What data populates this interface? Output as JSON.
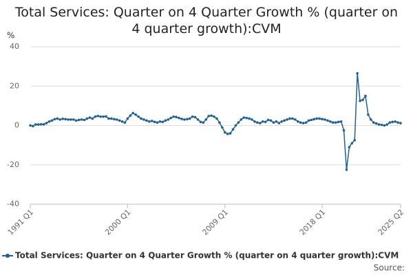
{
  "chart_data": {
    "type": "line",
    "title": "Total Services: Quarter on 4 Quarter Growth % (quarter on 4 quarter growth):CVM",
    "y_label": "%",
    "source": "Source:",
    "categories": [
      "1991 Q1",
      null,
      null,
      null,
      null,
      null,
      null,
      null,
      null,
      null,
      null,
      null,
      null,
      null,
      null,
      null,
      null,
      null,
      null,
      null,
      null,
      null,
      null,
      null,
      null,
      null,
      null,
      null,
      null,
      null,
      null,
      null,
      null,
      null,
      null,
      null,
      "2000 Q1",
      null,
      null,
      null,
      null,
      null,
      null,
      null,
      null,
      null,
      null,
      null,
      null,
      null,
      null,
      null,
      null,
      null,
      null,
      null,
      null,
      null,
      null,
      null,
      null,
      null,
      null,
      null,
      null,
      null,
      null,
      null,
      null,
      null,
      null,
      null,
      "2009 Q1",
      null,
      null,
      null,
      null,
      null,
      null,
      null,
      null,
      null,
      null,
      null,
      null,
      null,
      null,
      null,
      null,
      null,
      null,
      null,
      null,
      null,
      null,
      null,
      null,
      null,
      null,
      null,
      null,
      null,
      null,
      null,
      null,
      null,
      null,
      null,
      "2018 Q1",
      null,
      null,
      null,
      null,
      null,
      null,
      null,
      null,
      null,
      null,
      null,
      null,
      null,
      null,
      null,
      null,
      null,
      null,
      null,
      null,
      null,
      null,
      null,
      null,
      null,
      null,
      null,
      null,
      "2025 Q2"
    ],
    "series": [
      {
        "name": "Total Services: Quarter on 4 Quarter Growth % (quarter on 4 quarter growth):CVM",
        "color": "#206095",
        "values": [
          0,
          -0.3,
          0.5,
          0.5,
          0.6,
          0.6,
          1.2,
          2.0,
          2.5,
          3.2,
          3.5,
          3.0,
          3.4,
          3.2,
          3.0,
          3.0,
          3.0,
          2.5,
          2.8,
          3.0,
          2.8,
          3.5,
          4.0,
          3.5,
          4.5,
          4.8,
          4.5,
          4.5,
          4.6,
          3.5,
          3.5,
          3.2,
          3.0,
          2.5,
          2.0,
          1.5,
          3.5,
          5.0,
          6.3,
          5.5,
          4.5,
          3.5,
          3.0,
          2.5,
          2.0,
          2.3,
          1.8,
          1.5,
          2.0,
          1.8,
          2.5,
          3.0,
          3.8,
          4.5,
          4.3,
          3.8,
          3.3,
          3.0,
          3.2,
          3.5,
          4.5,
          4.2,
          3.0,
          1.8,
          1.5,
          3.0,
          4.8,
          5.0,
          4.5,
          3.5,
          1.5,
          -1.0,
          -3.5,
          -4.3,
          -4.0,
          -2.0,
          0.0,
          1.5,
          3.0,
          4.0,
          3.8,
          3.5,
          3.0,
          2.0,
          1.5,
          1.2,
          2.0,
          1.8,
          2.8,
          2.5,
          1.5,
          2.0,
          1.2,
          2.0,
          2.5,
          3.0,
          3.5,
          3.5,
          3.0,
          2.0,
          1.5,
          1.2,
          1.5,
          2.5,
          2.8,
          3.2,
          3.5,
          3.5,
          3.2,
          3.0,
          2.5,
          2.0,
          1.5,
          1.5,
          1.8,
          2.0,
          -2.5,
          -22.5,
          -11,
          -9,
          -7.5,
          26.5,
          12.5,
          13,
          15,
          5.5,
          3,
          1.5,
          1.0,
          0.5,
          0.3,
          0.0,
          0.5,
          1.5,
          1.8,
          2.0,
          1.5,
          1.2
        ]
      }
    ],
    "ylim": [
      -40,
      40
    ],
    "yticks": [
      -40,
      -20,
      0,
      20,
      40
    ],
    "grid": true,
    "legend": "bottom"
  }
}
